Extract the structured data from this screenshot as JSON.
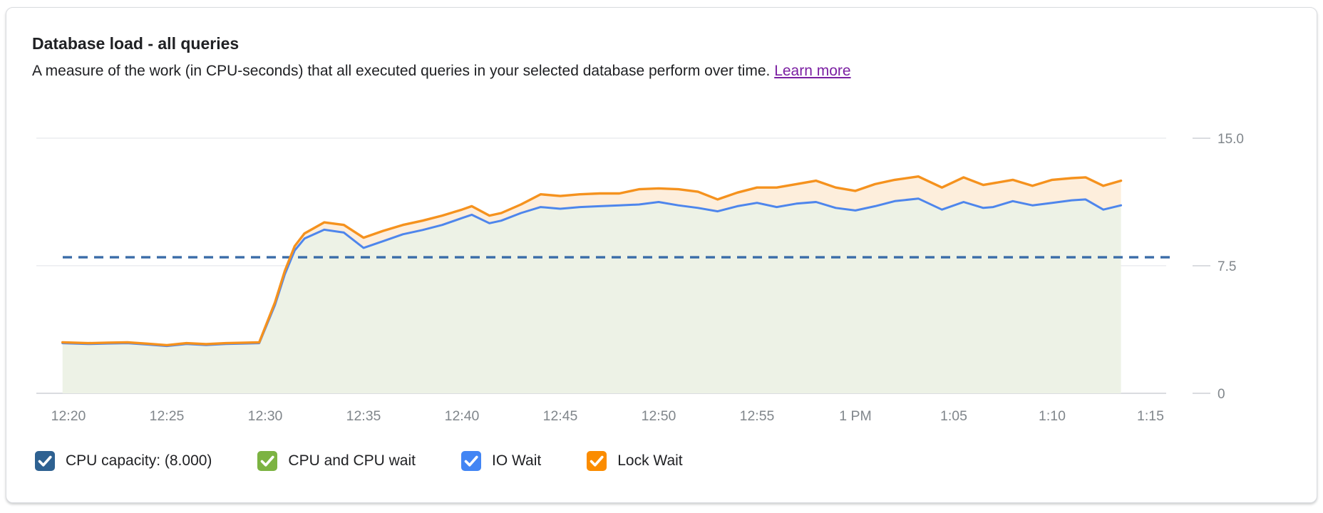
{
  "card": {
    "title": "Database load - all queries",
    "subtitle": "A measure of the work (in CPU-seconds) that all executed queries in your selected database perform over time.",
    "learn_more_label": "Learn more",
    "link_color": "#7B1FA2"
  },
  "legend": [
    {
      "label": "CPU capacity: (8.000)",
      "color": "#2E6191",
      "checked": true
    },
    {
      "label": "CPU and CPU wait",
      "color": "#7CB342",
      "checked": true
    },
    {
      "label": "IO Wait",
      "color": "#4285F4",
      "checked": true
    },
    {
      "label": "Lock Wait",
      "color": "#FB8C00",
      "checked": true
    }
  ],
  "chart_data": {
    "type": "area",
    "title": "Database load - all queries",
    "ylabel": "",
    "xlabel": "",
    "ylim": [
      0,
      15
    ],
    "grid": true,
    "legend_position": "bottom",
    "y_axis_side": "right",
    "y_ticks": [
      {
        "v": 0,
        "label": "0"
      },
      {
        "v": 7.5,
        "label": "7.5"
      },
      {
        "v": 15,
        "label": "15.0"
      }
    ],
    "x_ticks": [
      {
        "t": 20,
        "label": "12:20"
      },
      {
        "t": 25,
        "label": "12:25"
      },
      {
        "t": 30,
        "label": "12:30"
      },
      {
        "t": 35,
        "label": "12:35"
      },
      {
        "t": 40,
        "label": "12:40"
      },
      {
        "t": 45,
        "label": "12:45"
      },
      {
        "t": 50,
        "label": "12:50"
      },
      {
        "t": 55,
        "label": "12:55"
      },
      {
        "t": 60,
        "label": "1 PM"
      },
      {
        "t": 65,
        "label": "1:05"
      },
      {
        "t": 70,
        "label": "1:10"
      },
      {
        "t": 75,
        "label": "1:15"
      }
    ],
    "x_unit": "minutes after 12:00 PM",
    "capacity_line": {
      "name": "CPU capacity",
      "value": 8.0,
      "color": "#3A6CA8",
      "style": "dashed"
    },
    "series": [
      {
        "name": "CPU and CPU wait + IO Wait (stacked boundary)",
        "legend_name": "IO Wait",
        "line_color": "#4E86EC",
        "area_fill": "#EDF2E6",
        "points": [
          [
            19.7,
            2.95
          ],
          [
            21,
            2.9
          ],
          [
            22,
            2.93
          ],
          [
            23,
            2.95
          ],
          [
            24,
            2.87
          ],
          [
            25,
            2.78
          ],
          [
            26,
            2.9
          ],
          [
            27,
            2.84
          ],
          [
            28,
            2.9
          ],
          [
            29,
            2.93
          ],
          [
            29.7,
            2.95
          ],
          [
            30.5,
            5.2
          ],
          [
            31,
            7.0
          ],
          [
            31.5,
            8.4
          ],
          [
            32,
            9.1
          ],
          [
            33,
            9.62
          ],
          [
            34,
            9.45
          ],
          [
            35,
            8.55
          ],
          [
            36,
            8.95
          ],
          [
            37,
            9.35
          ],
          [
            38,
            9.6
          ],
          [
            39,
            9.9
          ],
          [
            40,
            10.3
          ],
          [
            40.5,
            10.5
          ],
          [
            41.4,
            10.0
          ],
          [
            42,
            10.15
          ],
          [
            43,
            10.6
          ],
          [
            44,
            10.95
          ],
          [
            45,
            10.85
          ],
          [
            46,
            10.95
          ],
          [
            47,
            11.0
          ],
          [
            48,
            11.05
          ],
          [
            49,
            11.1
          ],
          [
            50,
            11.25
          ],
          [
            51,
            11.05
          ],
          [
            52,
            10.9
          ],
          [
            53,
            10.7
          ],
          [
            54,
            11.0
          ],
          [
            55,
            11.2
          ],
          [
            56,
            10.95
          ],
          [
            57,
            11.15
          ],
          [
            58,
            11.25
          ],
          [
            59,
            10.9
          ],
          [
            60,
            10.75
          ],
          [
            61,
            11.0
          ],
          [
            62,
            11.3
          ],
          [
            63.2,
            11.45
          ],
          [
            64.4,
            10.8
          ],
          [
            65.5,
            11.25
          ],
          [
            66.5,
            10.9
          ],
          [
            67,
            10.95
          ],
          [
            68,
            11.3
          ],
          [
            69,
            11.05
          ],
          [
            70,
            11.2
          ],
          [
            71,
            11.35
          ],
          [
            71.7,
            11.4
          ],
          [
            72.6,
            10.8
          ],
          [
            73.5,
            11.05
          ]
        ]
      },
      {
        "name": "Total with Lock Wait (stacked top)",
        "legend_name": "Lock Wait",
        "line_color": "#F5921E",
        "area_fill": "#FDEEDC",
        "points": [
          [
            19.7,
            3.0
          ],
          [
            21,
            2.95
          ],
          [
            22,
            2.98
          ],
          [
            23,
            3.0
          ],
          [
            24,
            2.92
          ],
          [
            25,
            2.83
          ],
          [
            26,
            2.95
          ],
          [
            27,
            2.89
          ],
          [
            28,
            2.95
          ],
          [
            29,
            2.98
          ],
          [
            29.7,
            3.0
          ],
          [
            30.5,
            5.35
          ],
          [
            31,
            7.2
          ],
          [
            31.5,
            8.65
          ],
          [
            32,
            9.4
          ],
          [
            33,
            10.05
          ],
          [
            34,
            9.9
          ],
          [
            35,
            9.15
          ],
          [
            36,
            9.55
          ],
          [
            37,
            9.9
          ],
          [
            38,
            10.15
          ],
          [
            39,
            10.45
          ],
          [
            40,
            10.8
          ],
          [
            40.5,
            11.0
          ],
          [
            41.4,
            10.45
          ],
          [
            42,
            10.6
          ],
          [
            43,
            11.1
          ],
          [
            44,
            11.7
          ],
          [
            45,
            11.6
          ],
          [
            46,
            11.7
          ],
          [
            47,
            11.75
          ],
          [
            48,
            11.75
          ],
          [
            49,
            12.0
          ],
          [
            50,
            12.05
          ],
          [
            51,
            12.0
          ],
          [
            52,
            11.85
          ],
          [
            53,
            11.4
          ],
          [
            54,
            11.8
          ],
          [
            55,
            12.1
          ],
          [
            56,
            12.1
          ],
          [
            57,
            12.3
          ],
          [
            58,
            12.5
          ],
          [
            59,
            12.1
          ],
          [
            60,
            11.9
          ],
          [
            61,
            12.3
          ],
          [
            62,
            12.55
          ],
          [
            63.2,
            12.75
          ],
          [
            64.4,
            12.1
          ],
          [
            65.5,
            12.7
          ],
          [
            66.5,
            12.25
          ],
          [
            67,
            12.35
          ],
          [
            68,
            12.55
          ],
          [
            69,
            12.2
          ],
          [
            70,
            12.55
          ],
          [
            71,
            12.65
          ],
          [
            71.7,
            12.7
          ],
          [
            72.6,
            12.2
          ],
          [
            73.5,
            12.5
          ]
        ]
      }
    ],
    "axis_label_color": "#80868B",
    "gridline_color": "#E9EAED",
    "baseline_color": "#DADCE0"
  }
}
